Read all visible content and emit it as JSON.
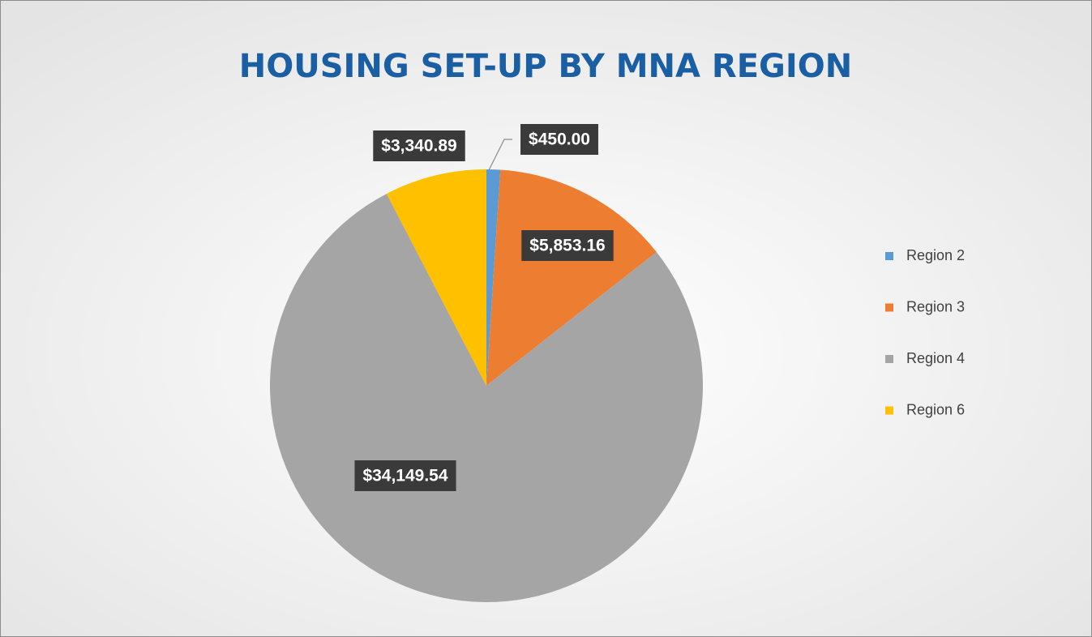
{
  "chart_data": {
    "type": "pie",
    "title": "HOUSING SET-UP BY MNA REGION",
    "categories": [
      "Region 2",
      "Region 3",
      "Region 4",
      "Region 6"
    ],
    "values": [
      450.0,
      5853.16,
      34149.54,
      3340.89
    ],
    "value_labels": [
      "$450.00",
      "$5,853.16",
      "$34,149.54",
      "$3,340.89"
    ],
    "colors": [
      "#5b9bd5",
      "#ed7d31",
      "#a5a5a5",
      "#ffc000"
    ],
    "legend": "right"
  }
}
